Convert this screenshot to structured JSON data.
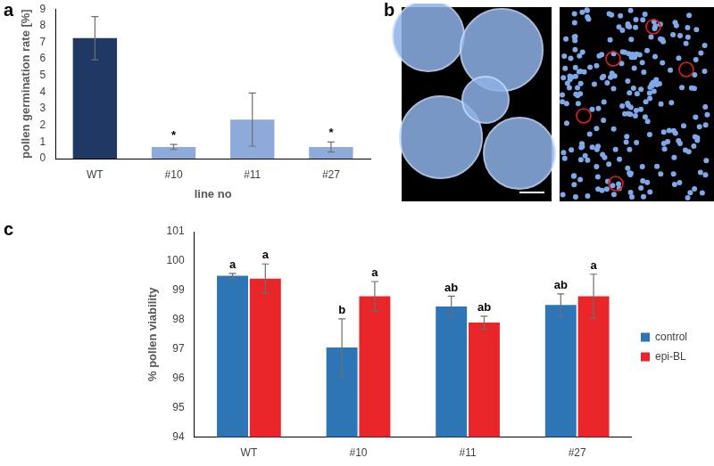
{
  "chart_data": [
    {
      "type": "bar",
      "title": "a",
      "x_label": "line no",
      "y_label": "pollen germination rate [%]",
      "categories": [
        "WT",
        "#10",
        "#11",
        "#27"
      ],
      "values": [
        7.25,
        0.7,
        2.35,
        0.7
      ],
      "errors": [
        1.3,
        0.15,
        1.6,
        0.3
      ],
      "colors": [
        "#1f3864",
        "#8eaadb",
        "#8eaadb",
        "#8eaadb"
      ],
      "ylim": [
        0,
        9
      ],
      "yticks": [
        0,
        1,
        2,
        3,
        4,
        5,
        6,
        7,
        8,
        9
      ],
      "grid": false,
      "annotations": [
        {
          "category": "#10",
          "text": "*"
        },
        {
          "category": "#27",
          "text": "*"
        }
      ]
    },
    {
      "type": "bar",
      "title": "c",
      "y_label": "% pollen viability",
      "categories": [
        "WT",
        "#10",
        "#11",
        "#27"
      ],
      "series": [
        {
          "name": "control",
          "color": "#2e75b6",
          "values": [
            99.5,
            97.05,
            98.45,
            98.5
          ],
          "errors": [
            0.08,
            0.98,
            0.35,
            0.38
          ],
          "letters": [
            "a",
            "b",
            "ab",
            "ab"
          ]
        },
        {
          "name": "epi-BL",
          "color": "#e8262a",
          "values": [
            99.4,
            98.8,
            97.9,
            98.8
          ],
          "errors": [
            0.5,
            0.5,
            0.22,
            0.75
          ],
          "letters": [
            "a",
            "a",
            "ab",
            "a"
          ]
        }
      ],
      "ylim": [
        94,
        101
      ],
      "yticks": [
        94,
        95,
        96,
        97,
        98,
        99,
        100,
        101
      ],
      "grid": false,
      "legend": "right"
    }
  ],
  "image_panel": {
    "label": "b"
  }
}
